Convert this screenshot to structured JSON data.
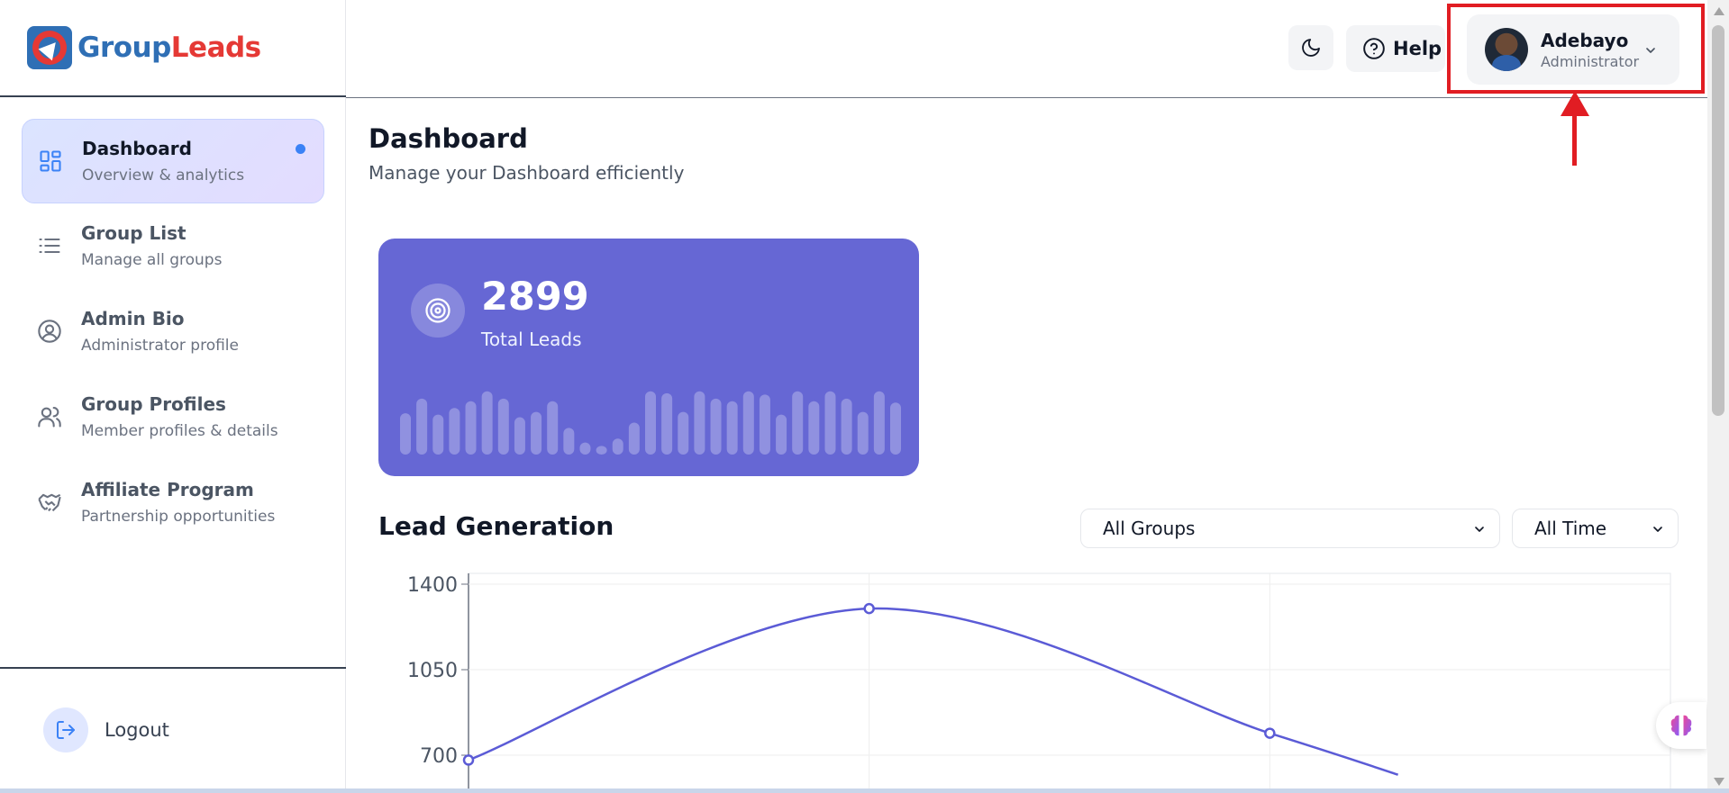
{
  "brand": {
    "part1": "Group",
    "part2": "Leads",
    "colors": {
      "blue": "#2f6fb5",
      "red": "#e53935"
    }
  },
  "sidebar": {
    "items": [
      {
        "title": "Dashboard",
        "subtitle": "Overview & analytics",
        "icon": "grid-icon",
        "active": true
      },
      {
        "title": "Group List",
        "subtitle": "Manage all groups",
        "icon": "list-icon",
        "active": false
      },
      {
        "title": "Admin Bio",
        "subtitle": "Administrator profile",
        "icon": "user-circle-icon",
        "active": false
      },
      {
        "title": "Group Profiles",
        "subtitle": "Member profiles & details",
        "icon": "users-icon",
        "active": false
      },
      {
        "title": "Affiliate Program",
        "subtitle": "Partnership opportunities",
        "icon": "handshake-icon",
        "active": false
      }
    ],
    "logout_label": "Logout"
  },
  "header": {
    "help_label": "Help",
    "user": {
      "name": "Adebayo",
      "role": "Administrator"
    }
  },
  "page": {
    "title": "Dashboard",
    "subtitle": "Manage your Dashboard efficiently"
  },
  "stat": {
    "value": "2899",
    "label": "Total Leads",
    "sparkline": [
      0.62,
      0.84,
      0.6,
      0.7,
      0.8,
      0.95,
      0.84,
      0.56,
      0.64,
      0.8,
      0.4,
      0.18,
      0.13,
      0.24,
      0.48,
      0.95,
      0.92,
      0.64,
      0.95,
      0.84,
      0.8,
      0.95,
      0.9,
      0.6,
      0.95,
      0.8,
      0.95,
      0.84,
      0.64,
      0.95,
      0.78
    ]
  },
  "lead_generation": {
    "title": "Lead Generation",
    "group_filter": "All Groups",
    "time_filter": "All Time"
  },
  "chart_data": {
    "type": "line",
    "title": "",
    "xlabel": "",
    "ylabel": "",
    "y_ticks": [
      "1400",
      "1050",
      "700"
    ],
    "ylim": [
      700,
      1400
    ],
    "grid": true,
    "series": [
      {
        "values": [
          {
            "x": 0,
            "y": 680
          },
          {
            "x": 1,
            "y": 1300
          },
          {
            "x": 2,
            "y": 790
          },
          {
            "x": 2.32,
            "y": 620
          }
        ],
        "color": "#5b5bd6"
      }
    ]
  }
}
